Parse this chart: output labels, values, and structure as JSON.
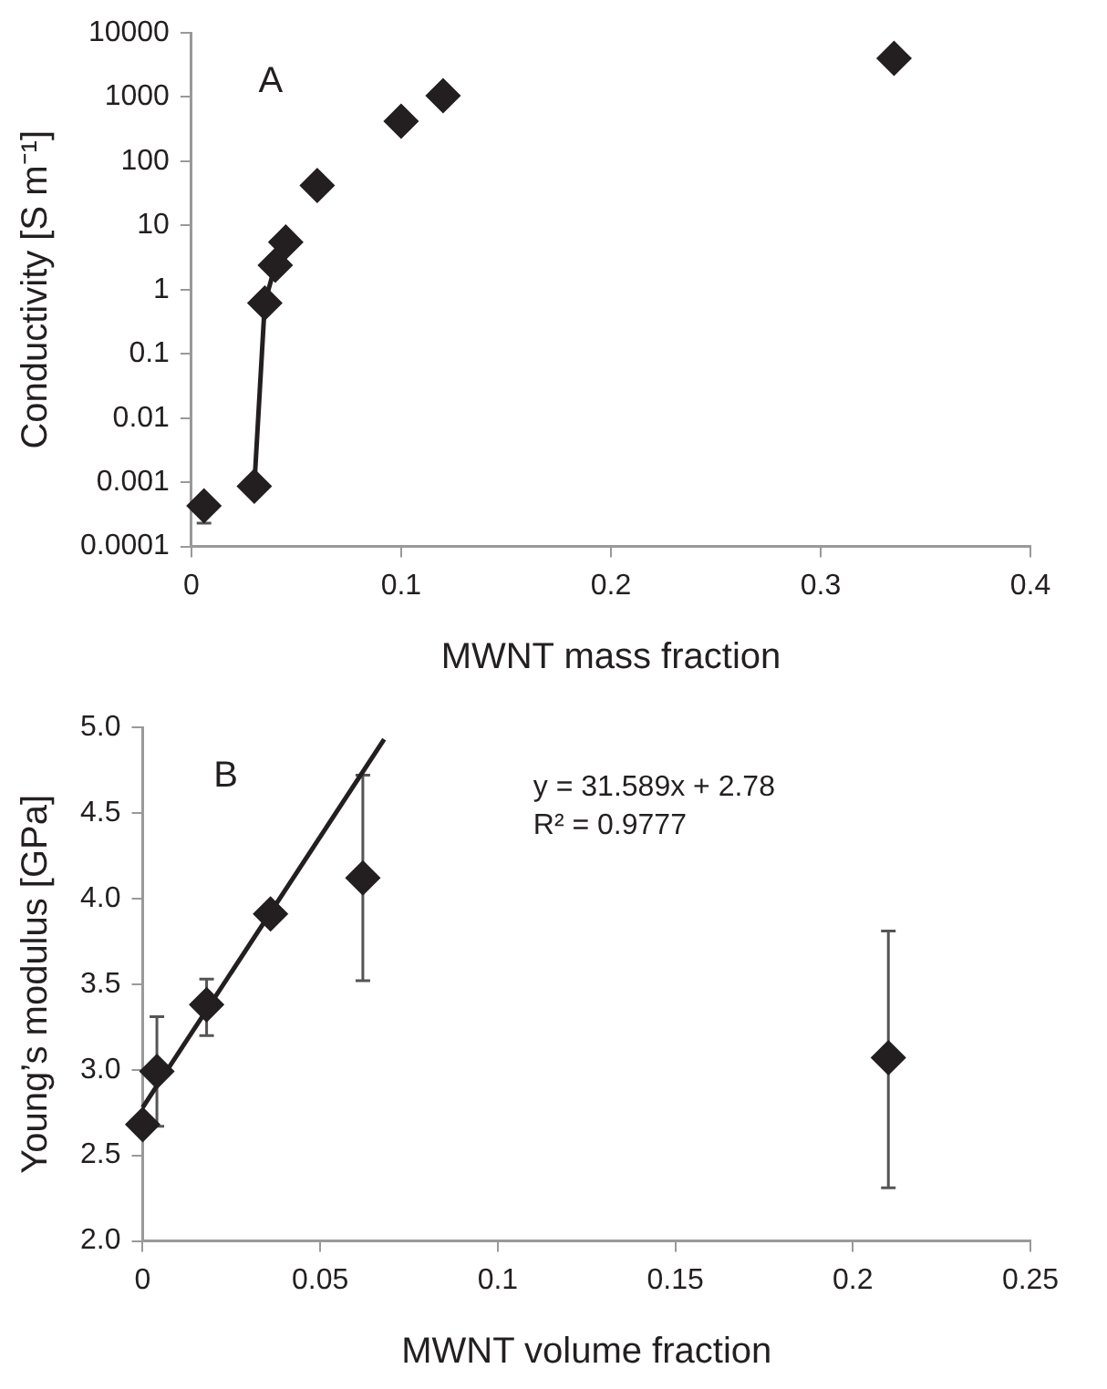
{
  "chart_data": [
    {
      "type": "scatter",
      "xlabel": "MWNT mass fraction",
      "ylabel": "Conductivity [S m⁻¹]",
      "log": "y",
      "marker": "diamond",
      "xlim": [
        0,
        0.4
      ],
      "xticks": [
        0,
        0.1,
        0.2,
        0.3,
        0.4
      ],
      "ylim": [
        0.0001,
        10000
      ],
      "yticks": [
        0.0001,
        0.001,
        0.01,
        0.1,
        1,
        10,
        100,
        1000,
        10000
      ],
      "annotations": [
        "A"
      ],
      "series": [
        {
          "type": "scatter",
          "color": "#231f20",
          "x": [
            0.006,
            0.03,
            0.035,
            0.04,
            0.045,
            0.06,
            0.1,
            0.12,
            0.335
          ],
          "values": [
            0.00043,
            0.00087,
            0.62,
            2.4,
            5.5,
            42,
            420,
            1050,
            4000
          ],
          "errors": [
            [
              0.00023,
              0.00043
            ],
            null,
            null,
            null,
            null,
            null,
            null,
            null,
            null
          ]
        },
        {
          "type": "line",
          "color": "#231f20",
          "marker": "none",
          "x": [
            0.03,
            0.035,
            0.04
          ],
          "values": [
            0.00087,
            0.62,
            2.4
          ]
        }
      ]
    },
    {
      "type": "scatter",
      "xlabel": "MWNT volume fraction",
      "ylabel": "Young’s modulus [GPa]",
      "marker": "diamond",
      "xlim": [
        0,
        0.25
      ],
      "xticks": [
        0,
        0.05,
        0.1,
        0.15,
        0.2,
        0.25
      ],
      "ylim": [
        2,
        5
      ],
      "yticks": [
        {
          "value": 2,
          "label": "2.0"
        },
        {
          "value": 2.5,
          "label": "2.5"
        },
        {
          "value": 3,
          "label": "3.0"
        },
        {
          "value": 3.5,
          "label": "3.5"
        },
        {
          "value": 4,
          "label": "4.0"
        },
        {
          "value": 4.5,
          "label": "4.5"
        },
        {
          "value": 5,
          "label": "5.0"
        }
      ],
      "annotations": [
        "B",
        "y = 31.589x + 2.78",
        "R² = 0.9777"
      ],
      "series": [
        {
          "type": "scatter",
          "color": "#231f20",
          "x": [
            0,
            0.004,
            0.018,
            0.036,
            0.062,
            0.21
          ],
          "values": [
            2.68,
            2.99,
            3.38,
            3.91,
            4.12,
            3.07
          ],
          "errors": [
            null,
            [
              2.67,
              3.31
            ],
            [
              3.2,
              3.53
            ],
            null,
            [
              3.52,
              4.72
            ],
            [
              2.31,
              3.81
            ]
          ]
        },
        {
          "type": "line",
          "color": "#231f20",
          "marker": "none",
          "x": [
            0,
            0.068
          ],
          "values": [
            2.78,
            4.93
          ]
        }
      ]
    }
  ]
}
